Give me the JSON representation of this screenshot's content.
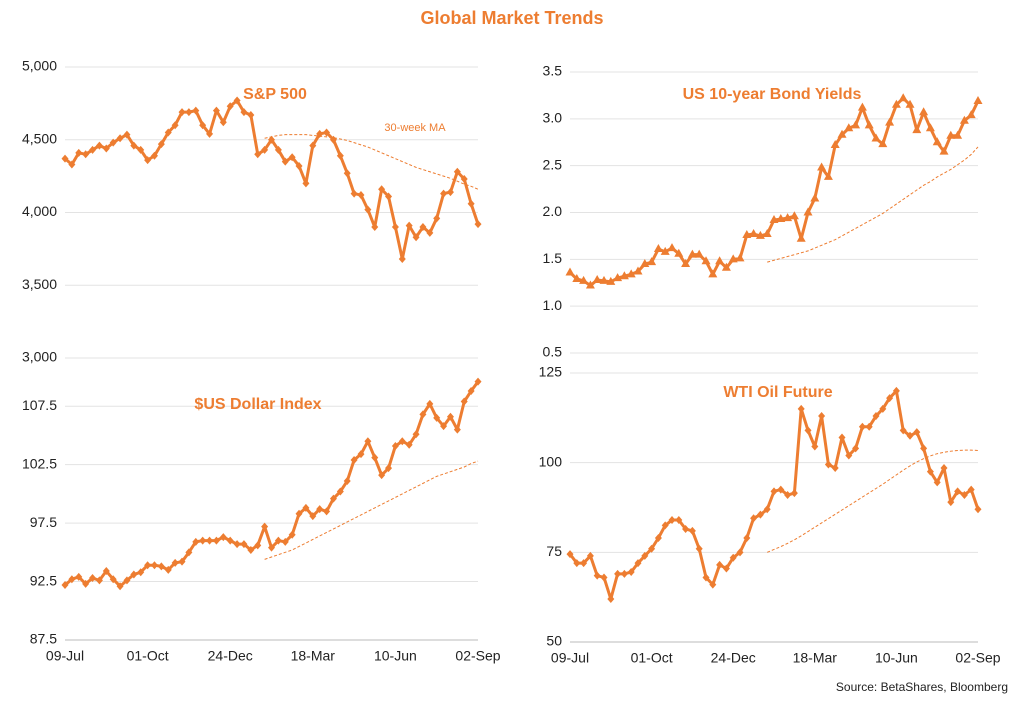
{
  "title": "Global Market Trends",
  "source": "Source: BetaShares, Bloomberg",
  "chart_data": [
    {
      "type": "line",
      "title": "S&P 500",
      "annotation": "30-week MA",
      "grid": true,
      "marker": "diamond",
      "categories": [
        null,
        null,
        null,
        null,
        null,
        null,
        null,
        null,
        null,
        null,
        null,
        null,
        null,
        null,
        null,
        null,
        null,
        null,
        null,
        null,
        null,
        null,
        null,
        null,
        null,
        null,
        null,
        null,
        null,
        null,
        null,
        null,
        null,
        null,
        null,
        null,
        null,
        null,
        null,
        null,
        null,
        null,
        null,
        null,
        null,
        null,
        null,
        null,
        null,
        null,
        null,
        null,
        null,
        null,
        null,
        null,
        null,
        null,
        null,
        null,
        null
      ],
      "ylim": [
        3000,
        5000
      ],
      "yticks": [
        {
          "value": 3000,
          "label": "3,000"
        },
        {
          "value": 3500,
          "label": "3,500"
        },
        {
          "value": 4000,
          "label": "4,000"
        },
        {
          "value": 4500,
          "label": "4,500"
        },
        {
          "value": 5000,
          "label": "5,000"
        }
      ],
      "series": [
        {
          "color": "#ED7D31",
          "style": "solid",
          "values": [
            4370,
            4330,
            4410,
            4400,
            4430,
            4460,
            4440,
            4480,
            4510,
            4535,
            4460,
            4430,
            4360,
            4390,
            4470,
            4550,
            4600,
            4690,
            4690,
            4700,
            4600,
            4540,
            4700,
            4620,
            4730,
            4770,
            4690,
            4670,
            4400,
            4430,
            4500,
            4430,
            4350,
            4380,
            4320,
            4200,
            4460,
            4540,
            4550,
            4500,
            4390,
            4270,
            4130,
            4120,
            4020,
            3900,
            4160,
            4110,
            3900,
            3680,
            3910,
            3830,
            3900,
            3860,
            3960,
            4130,
            4140,
            4280,
            4230,
            4060,
            3920
          ]
        },
        {
          "color": "#ED7D31",
          "style": "dashed",
          "values": [
            null,
            null,
            null,
            null,
            null,
            null,
            null,
            null,
            null,
            null,
            null,
            null,
            null,
            null,
            null,
            null,
            null,
            null,
            null,
            null,
            null,
            null,
            null,
            null,
            null,
            null,
            null,
            null,
            null,
            4510,
            4520,
            4530,
            4535,
            4535,
            4535,
            4535,
            4530,
            4525,
            4520,
            4515,
            4505,
            4495,
            4480,
            4465,
            4450,
            4430,
            4410,
            4390,
            4370,
            4350,
            4330,
            4310,
            4295,
            4280,
            4265,
            4250,
            4235,
            4215,
            4195,
            4180,
            4160
          ]
        }
      ]
    },
    {
      "type": "line",
      "title": "$US Dollar Index",
      "grid": true,
      "marker": "diamond",
      "categories": [
        "09-Jul",
        null,
        null,
        null,
        null,
        null,
        null,
        null,
        null,
        null,
        null,
        null,
        "01-Oct",
        null,
        null,
        null,
        null,
        null,
        null,
        null,
        null,
        null,
        null,
        null,
        "24-Dec",
        null,
        null,
        null,
        null,
        null,
        null,
        null,
        null,
        null,
        null,
        null,
        "18-Mar",
        null,
        null,
        null,
        null,
        null,
        null,
        null,
        null,
        null,
        null,
        null,
        "10-Jun",
        null,
        null,
        null,
        null,
        null,
        null,
        null,
        null,
        null,
        null,
        null,
        "02-Sep"
      ],
      "ylim": [
        87.5,
        110
      ],
      "yticks": [
        87.5,
        92.5,
        97.5,
        102.5,
        107.5
      ],
      "series": [
        {
          "color": "#ED7D31",
          "style": "solid",
          "values": [
            92.2,
            92.7,
            92.9,
            92.3,
            92.8,
            92.6,
            93.4,
            92.7,
            92.1,
            92.6,
            93.1,
            93.3,
            93.9,
            93.9,
            93.8,
            93.5,
            94.1,
            94.2,
            95.0,
            95.9,
            96.0,
            96.0,
            96.0,
            96.3,
            96.0,
            95.7,
            95.7,
            95.2,
            95.6,
            97.2,
            95.4,
            96.0,
            95.9,
            96.5,
            98.3,
            98.8,
            98.1,
            98.7,
            98.5,
            99.6,
            100.2,
            101.1,
            102.9,
            103.4,
            104.5,
            103.1,
            101.6,
            102.2,
            104.1,
            104.5,
            104.2,
            105.1,
            106.8,
            107.7,
            106.5,
            105.8,
            106.6,
            105.5,
            107.9,
            108.8,
            109.6
          ]
        },
        {
          "color": "#ED7D31",
          "style": "dashed",
          "values": [
            null,
            null,
            null,
            null,
            null,
            null,
            null,
            null,
            null,
            null,
            null,
            null,
            null,
            null,
            null,
            null,
            null,
            null,
            null,
            null,
            null,
            null,
            null,
            null,
            null,
            null,
            null,
            null,
            null,
            94.4,
            94.6,
            94.8,
            95.0,
            95.2,
            95.5,
            95.8,
            96.1,
            96.4,
            96.7,
            97.0,
            97.3,
            97.6,
            97.9,
            98.2,
            98.5,
            98.8,
            99.1,
            99.4,
            99.7,
            100.0,
            100.3,
            100.6,
            100.9,
            101.2,
            101.5,
            101.7,
            101.9,
            102.1,
            102.3,
            102.6,
            102.8
          ]
        }
      ]
    },
    {
      "type": "line",
      "title": "US 10-year Bond Yields",
      "grid": true,
      "marker": "triangle",
      "categories": [
        null,
        null,
        null,
        null,
        null,
        null,
        null,
        null,
        null,
        null,
        null,
        null,
        null,
        null,
        null,
        null,
        null,
        null,
        null,
        null,
        null,
        null,
        null,
        null,
        null,
        null,
        null,
        null,
        null,
        null,
        null,
        null,
        null,
        null,
        null,
        null,
        null,
        null,
        null,
        null,
        null,
        null,
        null,
        null,
        null,
        null,
        null,
        null,
        null,
        null,
        null,
        null,
        null,
        null,
        null,
        null,
        null,
        null,
        null,
        null,
        null
      ],
      "ylim": [
        0.5,
        3.5
      ],
      "yticks": [
        0.5,
        {
          "value": 1,
          "label": "1.0"
        },
        1.5,
        {
          "value": 2,
          "label": "2.0"
        },
        2.5,
        {
          "value": 3,
          "label": "3.0"
        },
        3.5
      ],
      "series": [
        {
          "color": "#ED7D31",
          "style": "solid",
          "values": [
            1.36,
            1.29,
            1.27,
            1.22,
            1.28,
            1.27,
            1.26,
            1.3,
            1.32,
            1.34,
            1.37,
            1.45,
            1.47,
            1.61,
            1.58,
            1.62,
            1.56,
            1.45,
            1.55,
            1.55,
            1.48,
            1.34,
            1.48,
            1.41,
            1.5,
            1.51,
            1.76,
            1.77,
            1.75,
            1.77,
            1.92,
            1.93,
            1.94,
            1.96,
            1.72,
            2.0,
            2.15,
            2.48,
            2.38,
            2.72,
            2.83,
            2.9,
            2.93,
            3.12,
            2.93,
            2.79,
            2.73,
            2.96,
            3.15,
            3.22,
            3.15,
            2.88,
            3.07,
            2.9,
            2.75,
            2.65,
            2.82,
            2.82,
            2.98,
            3.04,
            3.19
          ]
        },
        {
          "color": "#ED7D31",
          "style": "dashed",
          "values": [
            null,
            null,
            null,
            null,
            null,
            null,
            null,
            null,
            null,
            null,
            null,
            null,
            null,
            null,
            null,
            null,
            null,
            null,
            null,
            null,
            null,
            null,
            null,
            null,
            null,
            null,
            null,
            null,
            null,
            1.47,
            1.49,
            1.51,
            1.53,
            1.55,
            1.57,
            1.59,
            1.62,
            1.65,
            1.68,
            1.71,
            1.75,
            1.79,
            1.83,
            1.87,
            1.91,
            1.95,
            1.99,
            2.04,
            2.09,
            2.14,
            2.19,
            2.24,
            2.29,
            2.33,
            2.38,
            2.42,
            2.46,
            2.51,
            2.56,
            2.62,
            2.7
          ]
        }
      ]
    },
    {
      "type": "line",
      "title": "WTI Oil Future",
      "grid": true,
      "marker": "diamond",
      "categories": [
        "09-Jul",
        null,
        null,
        null,
        null,
        null,
        null,
        null,
        null,
        null,
        null,
        null,
        "01-Oct",
        null,
        null,
        null,
        null,
        null,
        null,
        null,
        null,
        null,
        null,
        null,
        "24-Dec",
        null,
        null,
        null,
        null,
        null,
        null,
        null,
        null,
        null,
        null,
        null,
        "18-Mar",
        null,
        null,
        null,
        null,
        null,
        null,
        null,
        null,
        null,
        null,
        null,
        "10-Jun",
        null,
        null,
        null,
        null,
        null,
        null,
        null,
        null,
        null,
        null,
        null,
        "02-Sep"
      ],
      "ylim": [
        50,
        125
      ],
      "yticks": [
        50,
        75,
        100,
        125
      ],
      "series": [
        {
          "color": "#ED7D31",
          "style": "solid",
          "values": [
            74.5,
            72,
            72,
            74,
            68.5,
            68,
            62,
            69,
            69,
            69.5,
            72,
            74,
            76,
            79,
            82.5,
            84,
            84,
            81.5,
            81,
            76,
            68,
            66,
            71.5,
            70.5,
            73.5,
            75,
            79,
            84.5,
            85.5,
            87,
            92,
            92.5,
            91,
            91.5,
            115,
            109,
            104.5,
            113,
            99.5,
            98.5,
            107,
            102,
            104,
            110,
            110,
            113,
            115,
            118,
            120,
            109,
            107.5,
            108.5,
            104,
            97.5,
            94.5,
            98.5,
            89,
            92,
            91,
            92.5,
            87
          ]
        },
        {
          "color": "#ED7D31",
          "style": "dashed",
          "values": [
            null,
            null,
            null,
            null,
            null,
            null,
            null,
            null,
            null,
            null,
            null,
            null,
            null,
            null,
            null,
            null,
            null,
            null,
            null,
            null,
            null,
            null,
            null,
            null,
            null,
            null,
            null,
            null,
            null,
            75,
            75.8,
            76.6,
            77.5,
            78.5,
            79.6,
            80.8,
            82,
            83.2,
            84.4,
            85.6,
            86.8,
            88,
            89.2,
            90.4,
            91.6,
            92.8,
            94,
            95.3,
            96.6,
            97.9,
            99.1,
            100.2,
            101.1,
            101.9,
            102.5,
            102.9,
            103.2,
            103.4,
            103.5,
            103.5,
            103.4
          ]
        }
      ]
    }
  ]
}
